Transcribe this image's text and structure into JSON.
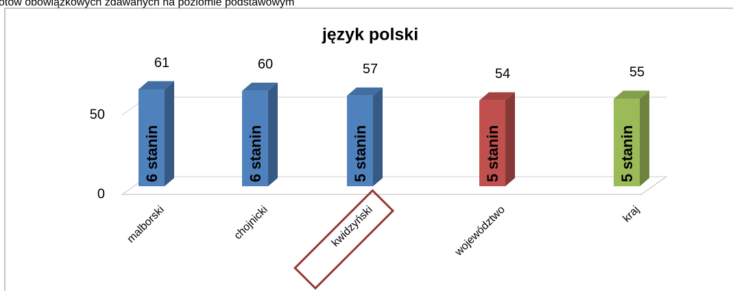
{
  "page_header": "otów obowiązkowych zdawanych na poziomie podstawowym",
  "chart_data": {
    "type": "bar3d",
    "title": "język polski",
    "categories": [
      "malborski",
      "chojnicki",
      "kwidzyński",
      "województwo",
      "kraj"
    ],
    "values": [
      61,
      60,
      57,
      54,
      55
    ],
    "bar_labels": [
      "6 stanin",
      "6 stanin",
      "5 stanin",
      "5 stanin",
      "5 stanin"
    ],
    "colors": [
      "#4f81bd",
      "#4f81bd",
      "#4f81bd",
      "#c0504d",
      "#9bbb59"
    ],
    "ylim": [
      0,
      70
    ],
    "yticks": [
      0,
      50
    ],
    "grid": true,
    "highlight": 2
  }
}
